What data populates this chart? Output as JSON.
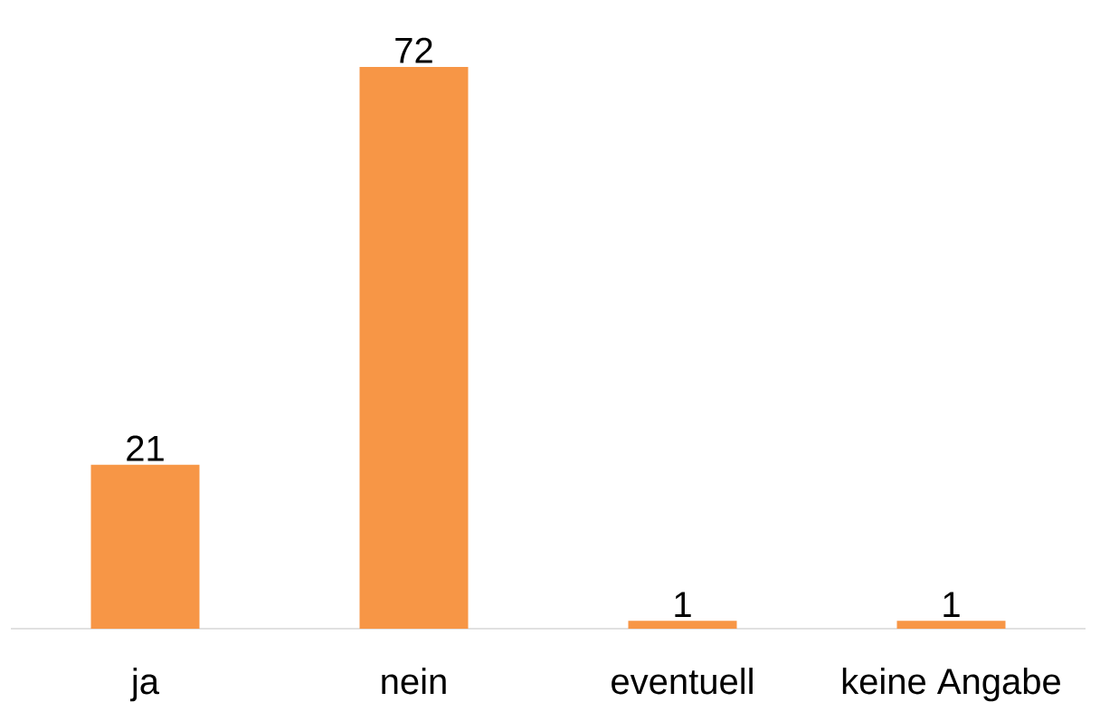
{
  "chart_data": {
    "type": "bar",
    "categories": [
      "ja",
      "nein",
      "eventuell",
      "keine Angabe"
    ],
    "values": [
      21,
      72,
      1,
      1
    ],
    "color": "#f79646",
    "data_labels": true
  }
}
